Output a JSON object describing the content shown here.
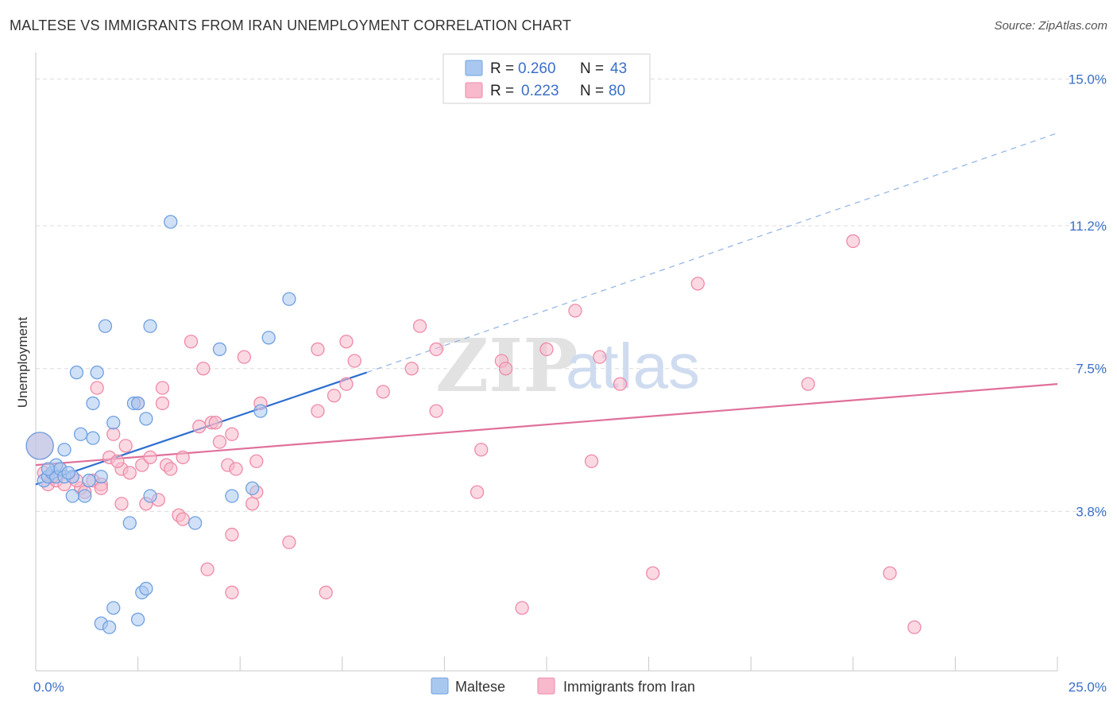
{
  "header": {
    "title": "MALTESE VS IMMIGRANTS FROM IRAN UNEMPLOYMENT CORRELATION CHART",
    "source": "Source: ZipAtlas.com"
  },
  "watermark": {
    "zip": "ZIP",
    "atlas": "atlas"
  },
  "legend": {
    "r_label": "R =",
    "n_label": "N =",
    "rows": [
      {
        "r": "0.260",
        "n": "43",
        "color": "#a9c8f0"
      },
      {
        "r": "0.223",
        "n": "80",
        "color": "#f7b9cb"
      }
    ]
  },
  "bottom_legend": {
    "items": [
      {
        "label": "Maltese",
        "color": "#a9c8f0"
      },
      {
        "label": "Immigrants from Iran",
        "color": "#f7b9cb"
      }
    ]
  },
  "chart_data": {
    "type": "scatter",
    "title": "MALTESE VS IMMIGRANTS FROM IRAN UNEMPLOYMENT CORRELATION CHART",
    "xlabel": "",
    "ylabel": "Unemployment",
    "xlim": [
      0,
      25
    ],
    "ylim": [
      0,
      15.4
    ],
    "x_tick_labels": [
      {
        "value": 0,
        "label": "0.0%"
      },
      {
        "value": 25,
        "label": "25.0%"
      }
    ],
    "y_tick_labels": [
      {
        "value": 3.8,
        "label": "3.8%"
      },
      {
        "value": 7.5,
        "label": "7.5%"
      },
      {
        "value": 11.2,
        "label": "11.2%"
      },
      {
        "value": 15.0,
        "label": "15.0%"
      }
    ],
    "series": [
      {
        "name": "Maltese",
        "color": "#6fa0e0",
        "fill": "#a9c8f0",
        "trend": {
          "x0": 0,
          "y0": 4.5,
          "x1": 8.1,
          "y1": 7.4,
          "dashed_to": {
            "x": 25,
            "y": 13.6
          },
          "color": "#2d6fd0"
        },
        "points": [
          [
            0.1,
            5.5
          ],
          [
            0.2,
            4.6
          ],
          [
            0.3,
            4.7
          ],
          [
            0.4,
            4.8
          ],
          [
            0.5,
            4.7
          ],
          [
            0.5,
            5.0
          ],
          [
            0.6,
            4.9
          ],
          [
            0.7,
            4.7
          ],
          [
            0.7,
            5.4
          ],
          [
            0.9,
            4.7
          ],
          [
            0.9,
            4.2
          ],
          [
            1.0,
            7.4
          ],
          [
            1.1,
            5.8
          ],
          [
            1.2,
            4.2
          ],
          [
            1.3,
            4.6
          ],
          [
            1.4,
            5.7
          ],
          [
            1.4,
            6.6
          ],
          [
            1.5,
            7.4
          ],
          [
            1.6,
            4.7
          ],
          [
            1.7,
            8.6
          ],
          [
            1.9,
            6.1
          ],
          [
            1.9,
            1.3
          ],
          [
            2.3,
            3.5
          ],
          [
            2.4,
            6.6
          ],
          [
            2.5,
            6.6
          ],
          [
            2.5,
            1.0
          ],
          [
            2.6,
            1.7
          ],
          [
            2.7,
            1.8
          ],
          [
            2.7,
            6.2
          ],
          [
            2.8,
            4.2
          ],
          [
            2.8,
            8.6
          ],
          [
            3.3,
            11.3
          ],
          [
            3.9,
            3.5
          ],
          [
            4.5,
            8.0
          ],
          [
            4.8,
            4.2
          ],
          [
            5.3,
            4.4
          ],
          [
            5.5,
            6.4
          ],
          [
            5.7,
            8.3
          ],
          [
            6.2,
            9.3
          ],
          [
            1.6,
            0.9
          ],
          [
            1.8,
            0.8
          ],
          [
            0.8,
            4.8
          ],
          [
            0.3,
            4.9
          ]
        ]
      },
      {
        "name": "Immigrants from Iran",
        "color": "#ee8aa8",
        "fill": "#f7b9cb",
        "trend": {
          "x0": 0,
          "y0": 5.0,
          "x1": 25,
          "y1": 7.1,
          "color": "#e0709a"
        },
        "points": [
          [
            0.1,
            5.5
          ],
          [
            0.2,
            4.8
          ],
          [
            0.3,
            4.5
          ],
          [
            0.5,
            4.6
          ],
          [
            0.6,
            4.9
          ],
          [
            0.7,
            4.5
          ],
          [
            0.9,
            4.7
          ],
          [
            1.1,
            4.4
          ],
          [
            1.2,
            4.3
          ],
          [
            1.4,
            4.6
          ],
          [
            1.5,
            7.0
          ],
          [
            1.6,
            4.5
          ],
          [
            1.6,
            4.4
          ],
          [
            1.8,
            5.2
          ],
          [
            1.9,
            5.8
          ],
          [
            2.1,
            4.0
          ],
          [
            2.1,
            4.9
          ],
          [
            2.2,
            5.5
          ],
          [
            2.3,
            4.8
          ],
          [
            2.5,
            6.6
          ],
          [
            2.6,
            5.0
          ],
          [
            2.7,
            4.0
          ],
          [
            2.8,
            5.2
          ],
          [
            3.0,
            4.1
          ],
          [
            3.1,
            6.6
          ],
          [
            3.1,
            7.0
          ],
          [
            3.2,
            5.0
          ],
          [
            3.3,
            4.9
          ],
          [
            3.5,
            3.7
          ],
          [
            3.6,
            5.2
          ],
          [
            3.6,
            3.6
          ],
          [
            3.8,
            8.2
          ],
          [
            4.0,
            6.0
          ],
          [
            4.1,
            7.5
          ],
          [
            4.2,
            2.3
          ],
          [
            4.3,
            6.1
          ],
          [
            4.4,
            6.1
          ],
          [
            4.5,
            5.6
          ],
          [
            4.7,
            5.0
          ],
          [
            4.8,
            5.8
          ],
          [
            4.8,
            3.2
          ],
          [
            4.8,
            1.7
          ],
          [
            4.9,
            4.9
          ],
          [
            5.1,
            7.8
          ],
          [
            5.3,
            4.0
          ],
          [
            5.4,
            5.1
          ],
          [
            5.4,
            4.3
          ],
          [
            5.5,
            6.6
          ],
          [
            6.2,
            3.0
          ],
          [
            6.9,
            8.0
          ],
          [
            6.9,
            6.4
          ],
          [
            7.1,
            1.7
          ],
          [
            7.3,
            6.8
          ],
          [
            7.6,
            8.2
          ],
          [
            7.6,
            7.1
          ],
          [
            7.8,
            7.7
          ],
          [
            8.5,
            6.9
          ],
          [
            9.2,
            7.5
          ],
          [
            9.4,
            8.6
          ],
          [
            9.8,
            6.4
          ],
          [
            9.8,
            8.0
          ],
          [
            10.8,
            4.3
          ],
          [
            10.9,
            5.4
          ],
          [
            11.4,
            7.7
          ],
          [
            11.5,
            7.5
          ],
          [
            11.9,
            1.3
          ],
          [
            12.5,
            8.0
          ],
          [
            13.2,
            9.0
          ],
          [
            13.6,
            5.1
          ],
          [
            13.8,
            7.8
          ],
          [
            14.3,
            7.1
          ],
          [
            15.1,
            2.2
          ],
          [
            16.2,
            9.7
          ],
          [
            18.9,
            7.1
          ],
          [
            20.0,
            10.8
          ],
          [
            20.9,
            2.2
          ],
          [
            21.5,
            0.8
          ],
          [
            0.4,
            4.7
          ],
          [
            1.0,
            4.6
          ],
          [
            2.0,
            5.1
          ]
        ]
      }
    ]
  }
}
